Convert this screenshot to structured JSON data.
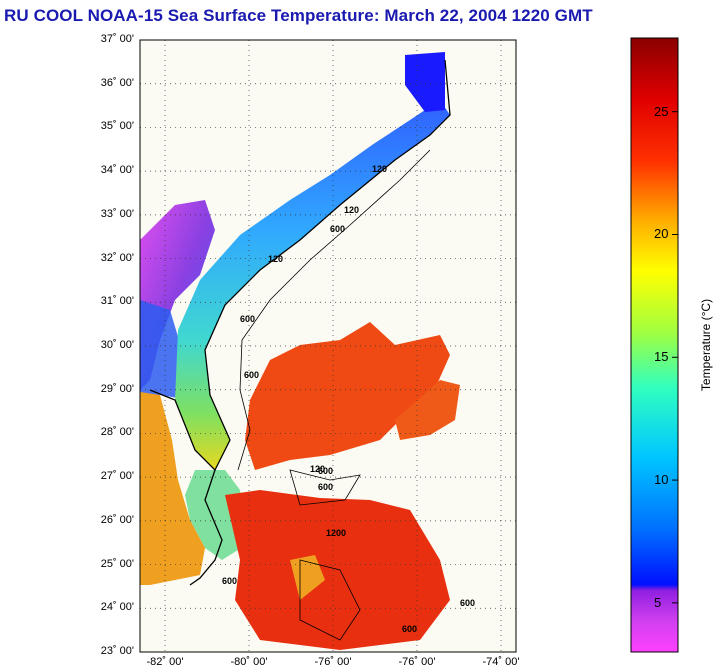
{
  "title": "RU COOL  NOAA-15  Sea Surface Temperature:  March 22, 2004 1220 GMT",
  "map": {
    "lat_ticks": [
      "37˚ 00'",
      "36˚ 00'",
      "35˚ 00'",
      "34˚ 00'",
      "33˚ 00'",
      "32˚ 00'",
      "31˚ 00'",
      "30˚ 00'",
      "29˚ 00'",
      "28˚ 00'",
      "27˚ 00'",
      "26˚ 00'",
      "25˚ 00'",
      "24˚ 00'",
      "23˚ 00'"
    ],
    "lon_ticks": [
      "-82˚ 00'",
      "-80˚ 00'",
      "-76˚ 00'",
      "-76˚ 00'",
      "-74˚ 00'"
    ],
    "contour_labels": [
      "120",
      "120",
      "600",
      "120",
      "600",
      "600",
      "120",
      "600",
      "1200",
      "600",
      "600",
      "600",
      "600"
    ],
    "colors": {
      "land": "#fbfbf3",
      "gulf_stream": "#f04a14",
      "shelf_cold": "#3fa0ff",
      "shelf_mid": "#4fd0d0",
      "coast_warm": "#e8d820"
    }
  },
  "colorbar": {
    "label": "Temperature (°C)",
    "ticks": [
      "25",
      "20",
      "15",
      "10",
      "5"
    ],
    "colors": [
      "#ff40ff",
      "#b030e0",
      "#0000e0",
      "#0060ff",
      "#00c0ff",
      "#00ffd0",
      "#40ff40",
      "#c0ff00",
      "#ffff00",
      "#ffc000",
      "#ff8000",
      "#ff3000",
      "#e00000",
      "#900000"
    ]
  }
}
